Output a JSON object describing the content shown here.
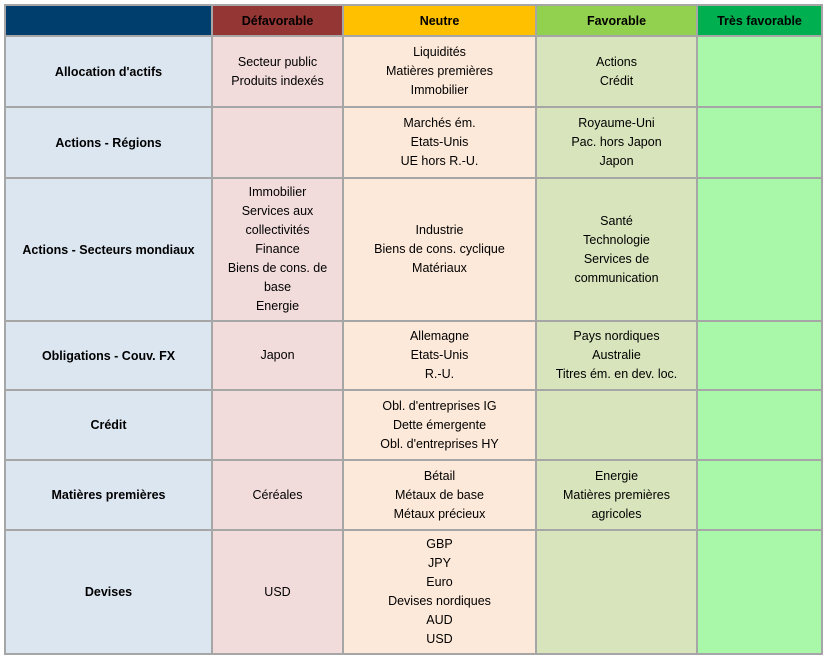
{
  "header": {
    "corner": "",
    "defavorable": "Défavorable",
    "neutre": "Neutre",
    "favorable": "Favorable",
    "tres_favorable": "Très favorable"
  },
  "colors": {
    "header_corner": "#003e6e",
    "header_defavorable": "#943634",
    "header_neutre": "#ffc000",
    "header_favorable": "#92d050",
    "header_tres_favorable": "#00b050",
    "row_label_bg": "#dce6f1",
    "row_label_text": "#17375e",
    "cell_defavorable": "#f2dcdb",
    "cell_neutre": "#fde9d9",
    "cell_favorable": "#d8e4bc",
    "cell_tres_favorable": "#a9f7a9"
  },
  "rows": [
    {
      "label": "Allocation d'actifs",
      "defavorable": [
        "Secteur public",
        "Produits indexés"
      ],
      "neutre": [
        "Liquidités",
        "Matières premières",
        "Immobilier"
      ],
      "favorable": [
        "Actions",
        "Crédit"
      ],
      "tres_favorable": []
    },
    {
      "label": "Actions - Régions",
      "defavorable": [],
      "neutre": [
        "Marchés ém.",
        "Etats-Unis",
        "UE hors R.-U."
      ],
      "favorable": [
        "Royaume-Uni",
        "Pac. hors Japon",
        "Japon"
      ],
      "tres_favorable": []
    },
    {
      "label": "Actions - Secteurs mondiaux",
      "defavorable": [
        "Immobilier",
        "Services aux",
        "collectivités",
        "Finance",
        "Biens de cons. de",
        "base",
        "Energie"
      ],
      "neutre": [
        "Industrie",
        "Biens de cons. cyclique",
        "Matériaux"
      ],
      "favorable": [
        "Santé",
        "Technologie",
        "Services de",
        "communication"
      ],
      "tres_favorable": []
    },
    {
      "label": "Obligations - Couv. FX",
      "defavorable": [
        "Japon"
      ],
      "neutre": [
        "Allemagne",
        "Etats-Unis",
        "R.-U."
      ],
      "favorable": [
        "Pays nordiques",
        "Australie",
        "Titres ém. en dev. loc."
      ],
      "tres_favorable": []
    },
    {
      "label": "Crédit",
      "defavorable": [],
      "neutre": [
        "Obl. d'entreprises IG",
        "Dette émergente",
        "Obl. d'entreprises HY"
      ],
      "favorable": [],
      "tres_favorable": []
    },
    {
      "label": "Matières premières",
      "defavorable": [
        "Céréales"
      ],
      "neutre": [
        "Bétail",
        "Métaux de base",
        "Métaux précieux"
      ],
      "favorable": [
        "Energie",
        "Matières premières",
        "agricoles"
      ],
      "tres_favorable": []
    },
    {
      "label": "Devises",
      "defavorable": [
        "USD"
      ],
      "neutre": [
        "GBP",
        "JPY",
        "Euro",
        "Devises nordiques",
        "AUD",
        "USD"
      ],
      "favorable": [],
      "tres_favorable": []
    }
  ]
}
